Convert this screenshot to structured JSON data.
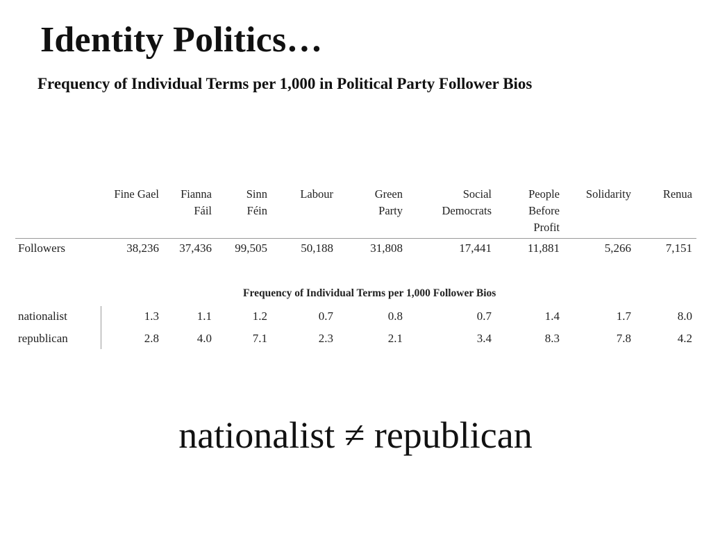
{
  "slide": {
    "title": "Identity Politics…",
    "subtitle": "Frequency of Individual Terms per 1,000 in Political Party Follower Bios",
    "conclusion": "nationalist ≠ republican"
  },
  "table": {
    "columns": [
      {
        "lines": [
          "Fine Gael"
        ]
      },
      {
        "lines": [
          "Fianna",
          "Fáil"
        ]
      },
      {
        "lines": [
          "Sinn",
          "Féin"
        ]
      },
      {
        "lines": [
          "Labour"
        ]
      },
      {
        "lines": [
          "Green",
          "Party"
        ]
      },
      {
        "lines": [
          "Social",
          "Democrats"
        ]
      },
      {
        "lines": [
          "People",
          "Before",
          "Profit"
        ]
      },
      {
        "lines": [
          "Solidarity"
        ]
      },
      {
        "lines": [
          "Renua"
        ]
      }
    ],
    "followers_row": {
      "label": "Followers",
      "values": [
        "38,236",
        "37,436",
        "99,505",
        "50,188",
        "31,808",
        "17,441",
        "11,881",
        "5,266",
        "7,151"
      ]
    },
    "section_caption": "Frequency of Individual Terms per 1,000 Follower Bios",
    "term_rows": [
      {
        "label": "nationalist",
        "values": [
          "1.3",
          "1.1",
          "1.2",
          "0.7",
          "0.8",
          "0.7",
          "1.4",
          "1.7",
          "8.0"
        ]
      },
      {
        "label": "republican",
        "values": [
          "2.8",
          "4.0",
          "7.1",
          "2.3",
          "2.1",
          "3.4",
          "8.3",
          "7.8",
          "4.2"
        ]
      }
    ]
  }
}
